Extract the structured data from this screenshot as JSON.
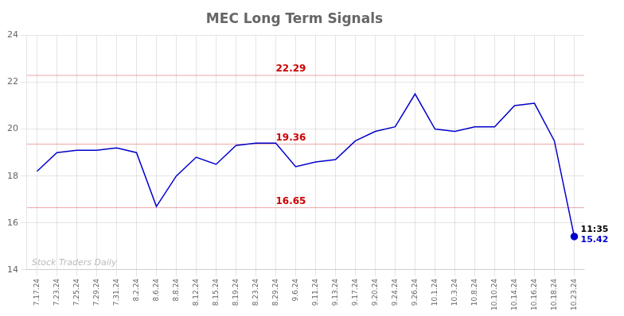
{
  "chart_data": {
    "type": "line",
    "title": "MEC Long Term Signals",
    "categories": [
      "7.17.24",
      "7.23.24",
      "7.25.24",
      "7.29.24",
      "7.31.24",
      "8.2.24",
      "8.6.24",
      "8.8.24",
      "8.12.24",
      "8.15.24",
      "8.19.24",
      "8.23.24",
      "8.29.24",
      "9.6.24",
      "9.11.24",
      "9.13.24",
      "9.17.24",
      "9.20.24",
      "9.24.24",
      "9.26.24",
      "10.1.24",
      "10.3.24",
      "10.8.24",
      "10.10.24",
      "10.14.24",
      "10.16.24",
      "10.18.24",
      "10.23.24"
    ],
    "values": [
      18.2,
      19.0,
      19.1,
      19.1,
      19.2,
      19.0,
      16.7,
      18.0,
      18.8,
      18.5,
      19.3,
      19.4,
      19.4,
      18.4,
      18.6,
      18.7,
      19.5,
      19.9,
      20.1,
      21.5,
      20.0,
      19.9,
      20.1,
      20.1,
      21.0,
      21.1,
      19.5,
      15.42
    ],
    "color": "#0000cc",
    "ylim": [
      14,
      24
    ],
    "yticks": [
      14,
      16,
      18,
      20,
      22,
      24
    ],
    "grid": true,
    "reference_lines": [
      {
        "value": 22.29,
        "label": "22.29",
        "x": "8.29.24",
        "color": "#cc0000"
      },
      {
        "value": 19.36,
        "label": "19.36",
        "x": "8.29.24",
        "color": "#cc0000"
      },
      {
        "value": 16.65,
        "label": "16.65",
        "x": "8.29.24",
        "color": "#cc0000"
      }
    ],
    "annotations": [
      {
        "text": "11:35",
        "x": "10.23.24",
        "y": 15.42
      },
      {
        "text": "15.42",
        "x": "10.23.24",
        "y": 15.42
      }
    ],
    "watermark": "Stock Traders Daily"
  }
}
